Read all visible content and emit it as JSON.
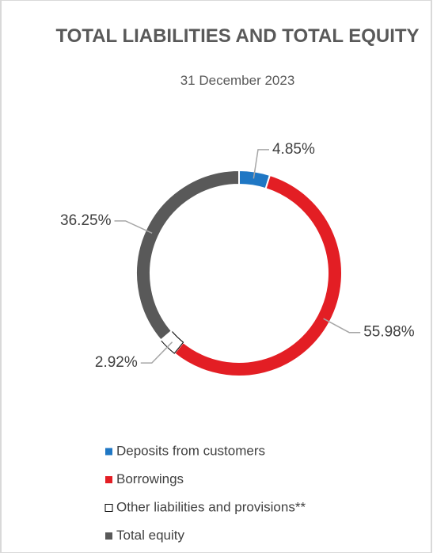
{
  "chart_data": {
    "type": "donut",
    "title": "TOTAL LIABILITIES AND TOTAL EQUITY",
    "subtitle": "31 December 2023",
    "categories": [
      "Deposits from customers",
      "Borrowings",
      "Other liabilities and provisions**",
      "Total equity"
    ],
    "values": [
      4.85,
      55.98,
      2.92,
      36.25
    ],
    "value_labels": [
      "4.85%",
      "55.98%",
      "2.92%",
      "36.25%"
    ],
    "colors": [
      "#1f77c4",
      "#e31e24",
      "#ffffff",
      "#595959"
    ],
    "legend": "bottom"
  }
}
